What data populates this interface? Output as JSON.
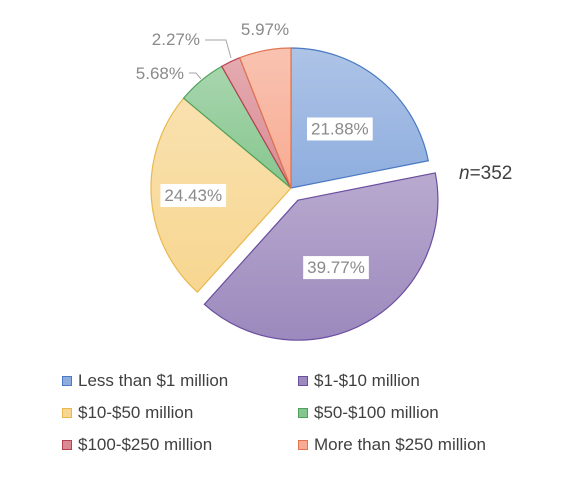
{
  "chart_data": {
    "type": "pie",
    "title": "",
    "annotation": "n=352",
    "annotation_prefix": "n",
    "annotation_value": "=352",
    "legend_position": "bottom",
    "slices": [
      {
        "name": "Less than $1 million",
        "value": 21.88,
        "label": "21.88%",
        "color": "#8eadde",
        "stroke": "#4a78c2",
        "exploded": false
      },
      {
        "name": "$1-$10 million",
        "value": 39.77,
        "label": "39.77%",
        "color": "#9c89bd",
        "stroke": "#6b4fa0",
        "exploded": true
      },
      {
        "name": "$10-$50 million",
        "value": 24.43,
        "label": "24.43%",
        "color": "#f7d690",
        "stroke": "#e9b94e",
        "exploded": false
      },
      {
        "name": "$50-$100 million",
        "value": 5.68,
        "label": "5.68%",
        "color": "#86c68e",
        "stroke": "#4ea25c",
        "exploded": false
      },
      {
        "name": "$100-$250 million",
        "value": 2.27,
        "label": "2.27%",
        "color": "#d98a92",
        "stroke": "#b5424f",
        "exploded": false
      },
      {
        "name": "More than $250 million",
        "value": 5.97,
        "label": "5.97%",
        "color": "#f7ab92",
        "stroke": "#e07550",
        "exploded": false
      }
    ]
  }
}
